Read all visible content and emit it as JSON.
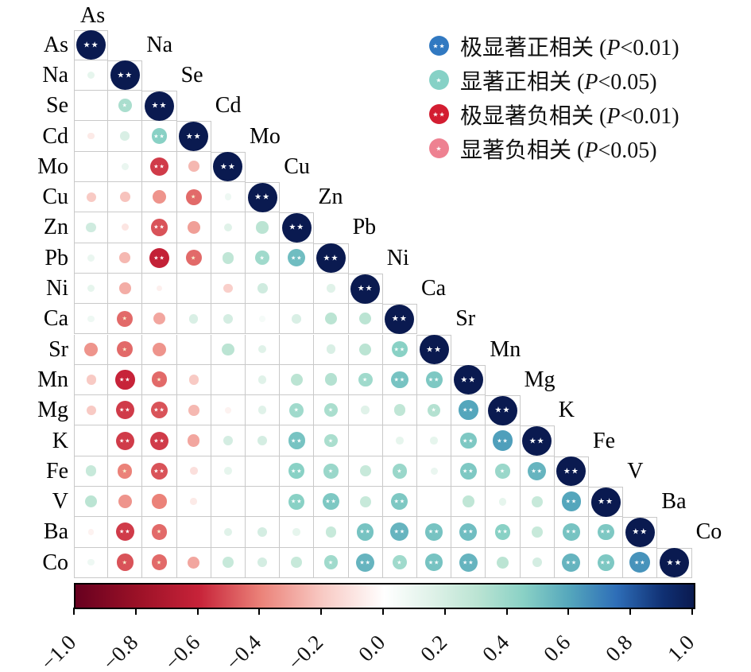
{
  "legend": {
    "items": [
      {
        "label": "极显著正相关 (",
        "p": "P",
        "rest": "<0.01)",
        "color": "#3179c1",
        "sig": "**"
      },
      {
        "label": "显著正相关 (",
        "p": "P",
        "rest": "<0.05)",
        "color": "#86d1c6",
        "sig": "*"
      },
      {
        "label": "极显著负相关 (",
        "p": "P",
        "rest": "<0.01)",
        "color": "#d31d31",
        "sig": "**"
      },
      {
        "label": "显著负相关 (",
        "p": "P",
        "rest": "<0.05)",
        "color": "#ee8191",
        "sig": "*"
      }
    ]
  },
  "chart_data": {
    "type": "heatmap",
    "subtype": "lower-triangle-correlation-matrix",
    "note_sig_markers": {
      "double_star": "P<0.01",
      "single_star": "P<0.05"
    },
    "elements": [
      "As",
      "Na",
      "Se",
      "Cd",
      "Mo",
      "Cu",
      "Zn",
      "Pb",
      "Ni",
      "Ca",
      "Sr",
      "Mn",
      "Mg",
      "K",
      "Fe",
      "V",
      "Ba",
      "Co"
    ],
    "rows": [
      {
        "name": "As",
        "values": [
          [
            1,
            "**"
          ]
        ]
      },
      {
        "name": "Na",
        "values": [
          [
            0.12,
            ""
          ],
          [
            1,
            "**"
          ]
        ]
      },
      {
        "name": "Se",
        "values": [
          [
            0,
            ""
          ],
          [
            0.35,
            "*"
          ],
          [
            1,
            "**"
          ]
        ]
      },
      {
        "name": "Cd",
        "values": [
          [
            -0.08,
            ""
          ],
          [
            0.18,
            ""
          ],
          [
            0.45,
            "**"
          ],
          [
            1,
            "**"
          ]
        ]
      },
      {
        "name": "Mo",
        "values": [
          [
            0,
            ""
          ],
          [
            0.1,
            ""
          ],
          [
            -0.55,
            "**"
          ],
          [
            -0.25,
            ""
          ],
          [
            1,
            "**"
          ]
        ]
      },
      {
        "name": "Cu",
        "values": [
          [
            -0.2,
            ""
          ],
          [
            -0.22,
            ""
          ],
          [
            -0.35,
            ""
          ],
          [
            -0.45,
            "*"
          ],
          [
            0.08,
            ""
          ],
          [
            1,
            "**"
          ]
        ]
      },
      {
        "name": "Zn",
        "values": [
          [
            0.22,
            ""
          ],
          [
            -0.1,
            ""
          ],
          [
            -0.5,
            "**"
          ],
          [
            -0.32,
            ""
          ],
          [
            0.15,
            ""
          ],
          [
            0.3,
            ""
          ],
          [
            1,
            "**"
          ]
        ]
      },
      {
        "name": "Pb",
        "values": [
          [
            0.1,
            ""
          ],
          [
            -0.25,
            ""
          ],
          [
            -0.62,
            "**"
          ],
          [
            -0.45,
            "*"
          ],
          [
            0.28,
            ""
          ],
          [
            0.38,
            "*"
          ],
          [
            0.52,
            "**"
          ],
          [
            1,
            "**"
          ]
        ]
      },
      {
        "name": "Ni",
        "values": [
          [
            0.12,
            ""
          ],
          [
            -0.28,
            ""
          ],
          [
            -0.06,
            ""
          ],
          [
            0,
            ""
          ],
          [
            -0.18,
            ""
          ],
          [
            0.22,
            ""
          ],
          [
            0,
            ""
          ],
          [
            0.15,
            ""
          ],
          [
            1,
            "**"
          ]
        ]
      },
      {
        "name": "Ca",
        "values": [
          [
            0.08,
            ""
          ],
          [
            -0.45,
            "*"
          ],
          [
            -0.3,
            ""
          ],
          [
            0.18,
            ""
          ],
          [
            0.2,
            ""
          ],
          [
            0.05,
            ""
          ],
          [
            0.18,
            ""
          ],
          [
            0.3,
            ""
          ],
          [
            0.3,
            ""
          ],
          [
            1,
            "**"
          ]
        ]
      },
      {
        "name": "Sr",
        "values": [
          [
            -0.35,
            ""
          ],
          [
            -0.45,
            "*"
          ],
          [
            -0.35,
            ""
          ],
          [
            0,
            ""
          ],
          [
            0.3,
            ""
          ],
          [
            0.15,
            ""
          ],
          [
            0,
            ""
          ],
          [
            0.18,
            ""
          ],
          [
            0.3,
            ""
          ],
          [
            0.45,
            "**"
          ],
          [
            1,
            "**"
          ]
        ]
      },
      {
        "name": "Mn",
        "values": [
          [
            -0.2,
            ""
          ],
          [
            -0.6,
            "**"
          ],
          [
            -0.45,
            "*"
          ],
          [
            -0.2,
            ""
          ],
          [
            0,
            ""
          ],
          [
            0.15,
            ""
          ],
          [
            0.3,
            ""
          ],
          [
            0.32,
            ""
          ],
          [
            0.38,
            "*"
          ],
          [
            0.5,
            "**"
          ],
          [
            0.48,
            "**"
          ],
          [
            1,
            "**"
          ]
        ]
      },
      {
        "name": "Mg",
        "values": [
          [
            -0.2,
            ""
          ],
          [
            -0.55,
            "**"
          ],
          [
            -0.5,
            "**"
          ],
          [
            -0.25,
            ""
          ],
          [
            -0.05,
            ""
          ],
          [
            0.15,
            ""
          ],
          [
            0.38,
            "*"
          ],
          [
            0.35,
            "*"
          ],
          [
            0.15,
            ""
          ],
          [
            0.28,
            ""
          ],
          [
            0.32,
            "*"
          ],
          [
            0.6,
            "**"
          ],
          [
            1,
            "**"
          ]
        ]
      },
      {
        "name": "K",
        "values": [
          [
            0,
            ""
          ],
          [
            -0.55,
            "**"
          ],
          [
            -0.55,
            "**"
          ],
          [
            -0.3,
            ""
          ],
          [
            0.2,
            ""
          ],
          [
            0.2,
            ""
          ],
          [
            0.5,
            "**"
          ],
          [
            0.35,
            "*"
          ],
          [
            0,
            ""
          ],
          [
            0.12,
            ""
          ],
          [
            0.12,
            ""
          ],
          [
            0.48,
            "**"
          ],
          [
            0.62,
            "**"
          ],
          [
            1,
            "**"
          ]
        ]
      },
      {
        "name": "Fe",
        "values": [
          [
            0.25,
            ""
          ],
          [
            -0.4,
            "*"
          ],
          [
            -0.5,
            "**"
          ],
          [
            -0.12,
            ""
          ],
          [
            0.12,
            ""
          ],
          [
            0,
            ""
          ],
          [
            0.45,
            "**"
          ],
          [
            0.4,
            "*"
          ],
          [
            0.25,
            ""
          ],
          [
            0.4,
            "*"
          ],
          [
            0.1,
            ""
          ],
          [
            0.48,
            "**"
          ],
          [
            0.4,
            "*"
          ],
          [
            0.55,
            "**"
          ],
          [
            1,
            "**"
          ]
        ]
      },
      {
        "name": "V",
        "values": [
          [
            0.3,
            ""
          ],
          [
            -0.35,
            ""
          ],
          [
            -0.4,
            ""
          ],
          [
            -0.08,
            ""
          ],
          [
            0,
            ""
          ],
          [
            0,
            ""
          ],
          [
            0.45,
            "**"
          ],
          [
            0.48,
            "**"
          ],
          [
            0.25,
            ""
          ],
          [
            0.48,
            "**"
          ],
          [
            0,
            ""
          ],
          [
            0.28,
            ""
          ],
          [
            0.12,
            ""
          ],
          [
            0.25,
            ""
          ],
          [
            0.6,
            "**"
          ],
          [
            1,
            "**"
          ]
        ]
      },
      {
        "name": "Ba",
        "values": [
          [
            -0.05,
            ""
          ],
          [
            -0.55,
            "**"
          ],
          [
            -0.45,
            "*"
          ],
          [
            0,
            ""
          ],
          [
            0.15,
            ""
          ],
          [
            0.2,
            ""
          ],
          [
            0.12,
            ""
          ],
          [
            0.25,
            ""
          ],
          [
            0.5,
            "**"
          ],
          [
            0.55,
            "**"
          ],
          [
            0.5,
            "**"
          ],
          [
            0.52,
            "**"
          ],
          [
            0.45,
            "**"
          ],
          [
            0.25,
            ""
          ],
          [
            0.5,
            "**"
          ],
          [
            0.48,
            "**"
          ],
          [
            1,
            "**"
          ]
        ]
      },
      {
        "name": "Co",
        "values": [
          [
            0.08,
            ""
          ],
          [
            -0.5,
            "*"
          ],
          [
            -0.45,
            "*"
          ],
          [
            -0.3,
            ""
          ],
          [
            0.25,
            ""
          ],
          [
            0.2,
            ""
          ],
          [
            0.25,
            ""
          ],
          [
            0.38,
            "*"
          ],
          [
            0.55,
            "**"
          ],
          [
            0.38,
            "*"
          ],
          [
            0.5,
            "**"
          ],
          [
            0.55,
            "**"
          ],
          [
            0.3,
            ""
          ],
          [
            0.2,
            ""
          ],
          [
            0.55,
            "**"
          ],
          [
            0.48,
            "**"
          ],
          [
            0.65,
            "**"
          ],
          [
            1,
            "**"
          ]
        ]
      }
    ],
    "colorbar": {
      "min": -1,
      "max": 1,
      "ticks": [
        "−1.0",
        "−0.8",
        "−0.6",
        "−0.4",
        "−0.2",
        "0.0",
        "0.2",
        "0.4",
        "0.6",
        "0.8",
        "1.0"
      ],
      "stops": [
        {
          "v": -1.0,
          "c": "#67001f"
        },
        {
          "v": -0.8,
          "c": "#9b1127"
        },
        {
          "v": -0.6,
          "c": "#c72339"
        },
        {
          "v": -0.4,
          "c": "#eb8279"
        },
        {
          "v": -0.2,
          "c": "#f8cac4"
        },
        {
          "v": 0.0,
          "c": "#ffffff"
        },
        {
          "v": 0.15,
          "c": "#e0f2e9"
        },
        {
          "v": 0.3,
          "c": "#bbe4d3"
        },
        {
          "v": 0.45,
          "c": "#89d1c5"
        },
        {
          "v": 0.6,
          "c": "#54a6bc"
        },
        {
          "v": 0.75,
          "c": "#2e6eb8"
        },
        {
          "v": 0.9,
          "c": "#103073"
        },
        {
          "v": 1.0,
          "c": "#0a1a50"
        }
      ]
    }
  }
}
